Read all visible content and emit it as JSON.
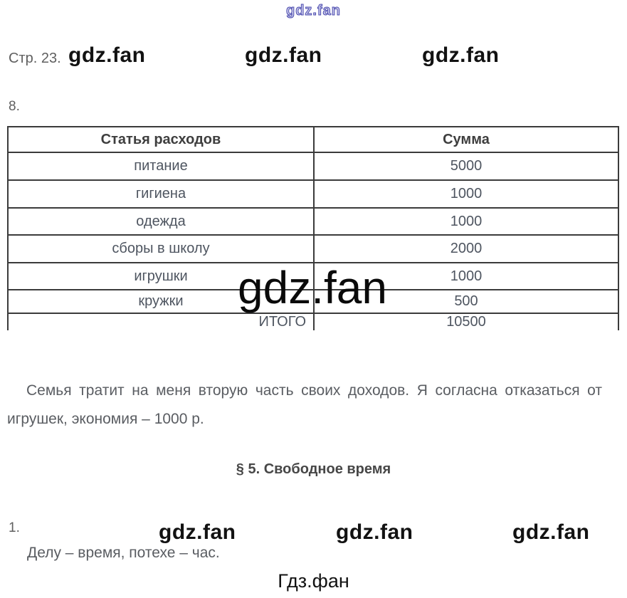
{
  "page": {
    "top_watermark": "gdz.fan",
    "page_label": "Стр. 23.",
    "task8_label": "8.",
    "task1_label": "1.",
    "big_watermark": "gdz.fan",
    "watermarks_row1": [
      "gdz.fan",
      "gdz.fan",
      "gdz.fan"
    ],
    "watermarks_row2": [
      "gdz.fan",
      "gdz.fan",
      "gdz.fan"
    ],
    "footer_brand": "Гдз.фан"
  },
  "table": {
    "headers": [
      "Статья расходов",
      "Сумма"
    ],
    "rows": [
      {
        "item": "питание",
        "sum": "5000",
        "total": false
      },
      {
        "item": "гигиена",
        "sum": "1000",
        "total": false
      },
      {
        "item": "одежда",
        "sum": "1000",
        "total": false
      },
      {
        "item": "сборы в школу",
        "sum": "2000",
        "total": false
      },
      {
        "item": "игрушки",
        "sum": "1000",
        "total": false
      },
      {
        "item": "кружки",
        "sum": "500",
        "total": false
      },
      {
        "item": "ИТОГО",
        "sum": "10500",
        "total": true
      }
    ]
  },
  "paragraph": {
    "lines": [
      "Семья тратит на меня вторую часть своих доходов. Я согласна отказаться от",
      "игрушек, экономия – 1000 р."
    ]
  },
  "section_heading": "§ 5. Свободное время",
  "proverb": "Делу – время, потехе – час.",
  "colors": {
    "table_border": "#3b3b3b",
    "table_text": "#4e5560",
    "header_text": "#3e3e3e",
    "body_text": "#5a5d62",
    "watermark_black": "#121212",
    "watermark_blue_stroke": "#4a4aae"
  }
}
